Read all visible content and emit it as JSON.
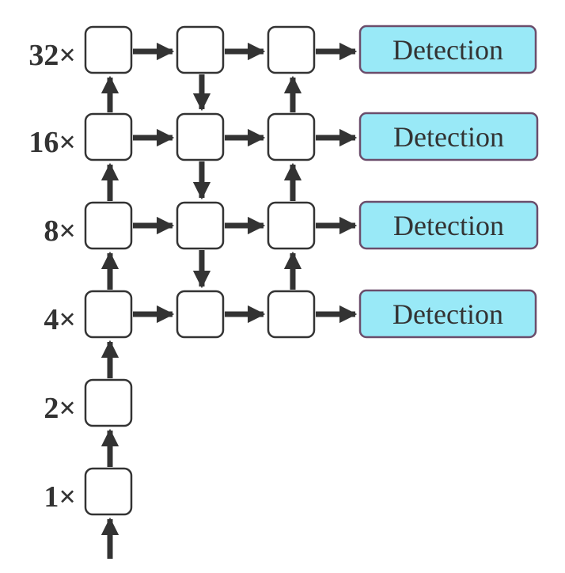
{
  "scale_labels": [
    "32×",
    "16×",
    "8×",
    "4×",
    "2×",
    "1×"
  ],
  "detection_label": "Detection",
  "detection_color": "#99e9f7",
  "node_stroke": "#333333",
  "arrow_color": "#333333"
}
